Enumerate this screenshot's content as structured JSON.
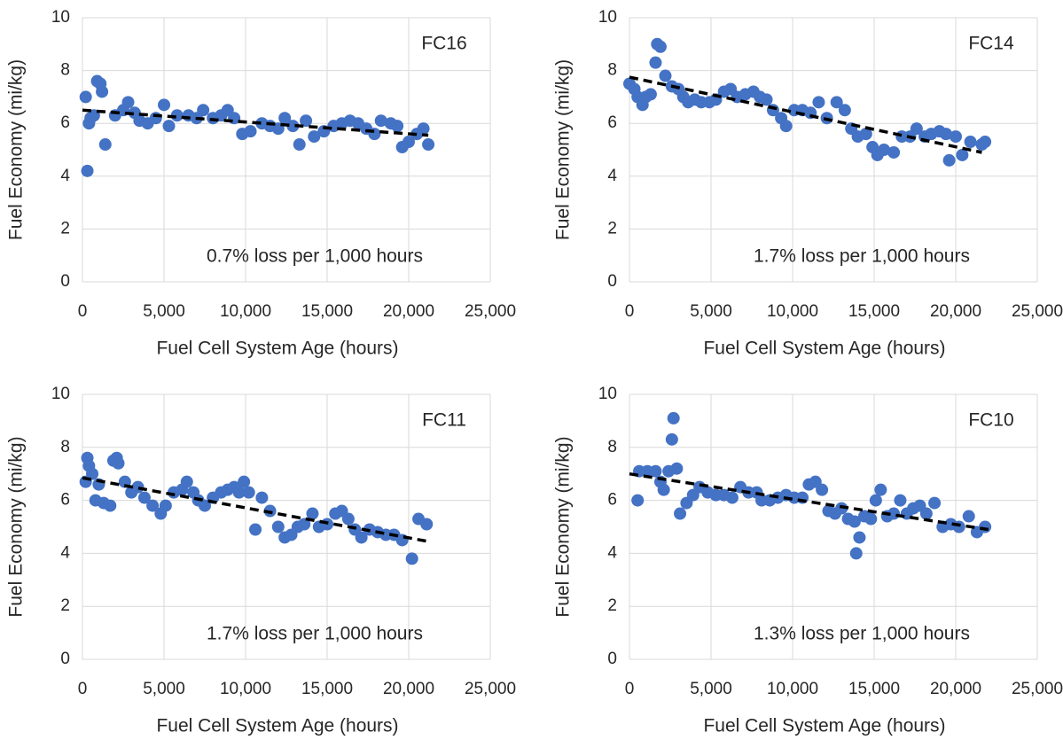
{
  "chart_data": [
    {
      "type": "scatter",
      "annotation_label": "FC16",
      "annotation": "0.7% loss per 1,000 hours",
      "xlabel": "Fuel Cell System Age (hours)",
      "ylabel": "Fuel Economy (mi/kg)",
      "color": "#4472c4",
      "grid": true,
      "x": [
        200,
        300,
        400,
        500,
        700,
        900,
        1100,
        1200,
        1400,
        2000,
        2500,
        2800,
        3200,
        3500,
        4000,
        4500,
        5000,
        5300,
        5800,
        6500,
        7000,
        7400,
        8000,
        8500,
        8900,
        9300,
        9800,
        10300,
        11000,
        11500,
        12000,
        12400,
        12900,
        13300,
        13700,
        14200,
        14800,
        15400,
        15900,
        16400,
        16900,
        17400,
        17900,
        18300,
        18900,
        19300,
        19600,
        20000,
        20500,
        20900,
        21200
      ],
      "values": [
        7.0,
        4.2,
        6.0,
        6.2,
        6.3,
        7.6,
        7.5,
        7.2,
        5.2,
        6.3,
        6.5,
        6.8,
        6.4,
        6.1,
        6.0,
        6.2,
        6.7,
        5.9,
        6.3,
        6.3,
        6.2,
        6.5,
        6.2,
        6.3,
        6.5,
        6.2,
        5.6,
        5.7,
        6.0,
        5.9,
        5.8,
        6.2,
        5.9,
        5.2,
        6.1,
        5.5,
        5.7,
        5.9,
        6.0,
        6.1,
        6.0,
        5.8,
        5.6,
        6.1,
        6.0,
        5.9,
        5.1,
        5.3,
        5.6,
        5.8,
        5.2
      ],
      "trend": {
        "x": [
          0,
          21200
        ],
        "values": [
          6.5,
          5.55
        ]
      },
      "xlim": [
        0,
        25000
      ],
      "xticks": [
        0,
        {
          "value": 5000,
          "label": "5,000"
        },
        {
          "value": 10000,
          "label": "10,000"
        },
        {
          "value": 15000,
          "label": "15,000"
        },
        {
          "value": 20000,
          "label": "20,000"
        },
        {
          "value": 25000,
          "label": "25,000"
        }
      ],
      "ylim": [
        0,
        10
      ],
      "yticks": [
        0,
        2,
        4,
        6,
        8,
        10
      ]
    },
    {
      "type": "scatter",
      "annotation_label": "FC14",
      "annotation": "1.7% loss per 1,000 hours",
      "xlabel": "Fuel Cell System Age (hours)",
      "ylabel": "Fuel Economy (mi/kg)",
      "color": "#4472c4",
      "grid": true,
      "x": [
        0,
        300,
        500,
        800,
        1000,
        1300,
        1600,
        1700,
        1900,
        2200,
        2600,
        3000,
        3300,
        3600,
        4000,
        4400,
        4900,
        5300,
        5800,
        6200,
        6600,
        7100,
        7600,
        8000,
        8400,
        8800,
        9300,
        9600,
        10100,
        10600,
        11100,
        11600,
        12100,
        12700,
        13200,
        13600,
        14000,
        14500,
        14900,
        15200,
        15600,
        16200,
        16700,
        17200,
        17600,
        18100,
        18500,
        19000,
        19400,
        19600,
        20000,
        20400,
        20900,
        21600,
        21800
      ],
      "values": [
        7.5,
        7.3,
        7.0,
        6.7,
        7.0,
        7.1,
        8.3,
        9.0,
        8.9,
        7.8,
        7.4,
        7.3,
        7.0,
        6.8,
        6.9,
        6.8,
        6.8,
        6.9,
        7.2,
        7.3,
        7.0,
        7.1,
        7.2,
        7.0,
        6.9,
        6.5,
        6.2,
        5.9,
        6.5,
        6.5,
        6.4,
        6.8,
        6.2,
        6.8,
        6.5,
        5.8,
        5.5,
        5.6,
        5.1,
        4.8,
        5.0,
        4.9,
        5.5,
        5.5,
        5.8,
        5.5,
        5.6,
        5.7,
        5.6,
        4.6,
        5.5,
        4.8,
        5.3,
        5.2,
        5.3
      ],
      "trend": {
        "x": [
          0,
          21600
        ],
        "values": [
          7.75,
          4.9
        ]
      },
      "xlim": [
        0,
        25000
      ],
      "xticks": [
        0,
        {
          "value": 5000,
          "label": "5,000"
        },
        {
          "value": 10000,
          "label": "10,000"
        },
        {
          "value": 15000,
          "label": "15,000"
        },
        {
          "value": 20000,
          "label": "20,000"
        },
        {
          "value": 25000,
          "label": "25,000"
        }
      ],
      "ylim": [
        0,
        10
      ],
      "yticks": [
        0,
        2,
        4,
        6,
        8,
        10
      ]
    },
    {
      "type": "scatter",
      "annotation_label": "FC11",
      "annotation": "1.7% loss per 1,000 hours",
      "xlabel": "Fuel Cell System Age (hours)",
      "ylabel": "Fuel Economy (mi/kg)",
      "color": "#4472c4",
      "grid": true,
      "x": [
        200,
        300,
        400,
        600,
        800,
        1000,
        1300,
        1700,
        1900,
        2100,
        2200,
        2600,
        3000,
        3400,
        3800,
        4300,
        4800,
        5100,
        5600,
        6100,
        6400,
        6800,
        7100,
        7500,
        8000,
        8500,
        8900,
        9300,
        9600,
        9900,
        10200,
        10600,
        11000,
        11500,
        12000,
        12400,
        12800,
        13200,
        13600,
        14100,
        14500,
        15000,
        15500,
        15900,
        16300,
        16700,
        17100,
        17600,
        18100,
        18600,
        19100,
        19600,
        20200,
        20600,
        21100
      ],
      "values": [
        6.7,
        7.6,
        7.3,
        7.0,
        6.0,
        6.6,
        5.9,
        5.8,
        7.5,
        7.6,
        7.4,
        6.7,
        6.3,
        6.5,
        6.1,
        5.8,
        5.5,
        5.8,
        6.3,
        6.4,
        6.7,
        6.3,
        6.0,
        5.8,
        6.1,
        6.3,
        6.4,
        6.5,
        6.3,
        6.7,
        6.3,
        4.9,
        6.1,
        5.6,
        5.0,
        4.6,
        4.7,
        5.0,
        5.1,
        5.5,
        5.0,
        5.1,
        5.5,
        5.6,
        5.3,
        4.9,
        4.6,
        4.9,
        4.8,
        4.7,
        4.7,
        4.5,
        3.8,
        5.3,
        5.1
      ],
      "trend": {
        "x": [
          0,
          21200
        ],
        "values": [
          6.85,
          4.45
        ]
      },
      "xlim": [
        0,
        25000
      ],
      "xticks": [
        0,
        {
          "value": 5000,
          "label": "5,000"
        },
        {
          "value": 10000,
          "label": "10,000"
        },
        {
          "value": 15000,
          "label": "15,000"
        },
        {
          "value": 20000,
          "label": "20,000"
        },
        {
          "value": 25000,
          "label": "25,000"
        }
      ],
      "ylim": [
        0,
        10
      ],
      "yticks": [
        0,
        2,
        4,
        6,
        8,
        10
      ]
    },
    {
      "type": "scatter",
      "annotation_label": "FC10",
      "annotation": "1.3% loss per 1,000 hours",
      "xlabel": "Fuel Cell System Age (hours)",
      "ylabel": "Fuel Economy (mi/kg)",
      "color": "#4472c4",
      "grid": true,
      "x": [
        500,
        600,
        1100,
        1600,
        1900,
        2100,
        2400,
        2600,
        2700,
        2900,
        3100,
        3500,
        3900,
        4300,
        4800,
        5300,
        5800,
        6300,
        6800,
        7300,
        7800,
        8100,
        8600,
        9100,
        9600,
        10100,
        10600,
        11000,
        11400,
        11800,
        12200,
        12600,
        13000,
        13400,
        13800,
        13900,
        14100,
        14400,
        14800,
        15100,
        15400,
        15800,
        16200,
        16600,
        17000,
        17400,
        17800,
        18200,
        18700,
        19200,
        19700,
        20200,
        20800,
        21300,
        21800
      ],
      "values": [
        6.0,
        7.1,
        7.1,
        7.1,
        6.7,
        6.4,
        7.1,
        8.3,
        9.1,
        7.2,
        5.5,
        5.9,
        6.2,
        6.5,
        6.3,
        6.2,
        6.2,
        6.1,
        6.5,
        6.3,
        6.3,
        6.0,
        6.0,
        6.1,
        6.2,
        6.1,
        6.1,
        6.6,
        6.7,
        6.4,
        5.6,
        5.5,
        5.7,
        5.3,
        5.2,
        4.0,
        4.6,
        5.4,
        5.3,
        6.0,
        6.4,
        5.4,
        5.5,
        6.0,
        5.5,
        5.7,
        5.8,
        5.5,
        5.9,
        5.0,
        5.1,
        5.0,
        5.4,
        4.8,
        5.0
      ],
      "trend": {
        "x": [
          0,
          22000
        ],
        "values": [
          7.0,
          4.9
        ]
      },
      "xlim": [
        0,
        25000
      ],
      "xticks": [
        0,
        {
          "value": 5000,
          "label": "5,000"
        },
        {
          "value": 10000,
          "label": "10,000"
        },
        {
          "value": 15000,
          "label": "15,000"
        },
        {
          "value": 20000,
          "label": "20,000"
        },
        {
          "value": 25000,
          "label": "25,000"
        }
      ],
      "ylim": [
        0,
        10
      ],
      "yticks": [
        0,
        2,
        4,
        6,
        8,
        10
      ]
    }
  ]
}
